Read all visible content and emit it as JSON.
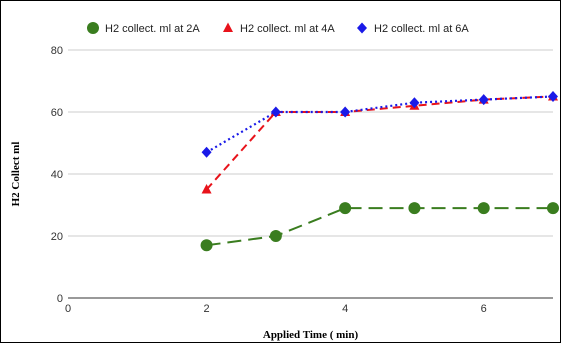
{
  "chart_data": {
    "type": "line",
    "title": "",
    "xlabel": "Applied Time ( min)",
    "ylabel": "H2 Collect ml",
    "xlim": [
      0,
      7
    ],
    "ylim": [
      0,
      80
    ],
    "x_ticks": [
      0,
      2,
      4,
      6
    ],
    "y_ticks": [
      0,
      20,
      40,
      60,
      80
    ],
    "grid": "horizontal",
    "legend_position": "top",
    "series": [
      {
        "name": "H2 collect. ml at 2A",
        "color": "#3a7d1f",
        "marker": "circle",
        "line_style": "long-dash",
        "x": [
          2,
          3,
          4,
          5,
          6,
          7
        ],
        "y": [
          17,
          20,
          29,
          29,
          29,
          29
        ]
      },
      {
        "name": "H2 collect. ml at 4A",
        "color": "#e8131b",
        "marker": "triangle",
        "line_style": "dash",
        "x": [
          2,
          3,
          4,
          5,
          6,
          7
        ],
        "y": [
          35,
          60,
          60,
          62,
          64,
          65
        ]
      },
      {
        "name": "H2 collect. ml at 6A",
        "color": "#1a1ae8",
        "marker": "diamond",
        "line_style": "dotted",
        "x": [
          2,
          3,
          4,
          5,
          6,
          7
        ],
        "y": [
          47,
          60,
          60,
          63,
          64,
          65
        ]
      }
    ]
  }
}
